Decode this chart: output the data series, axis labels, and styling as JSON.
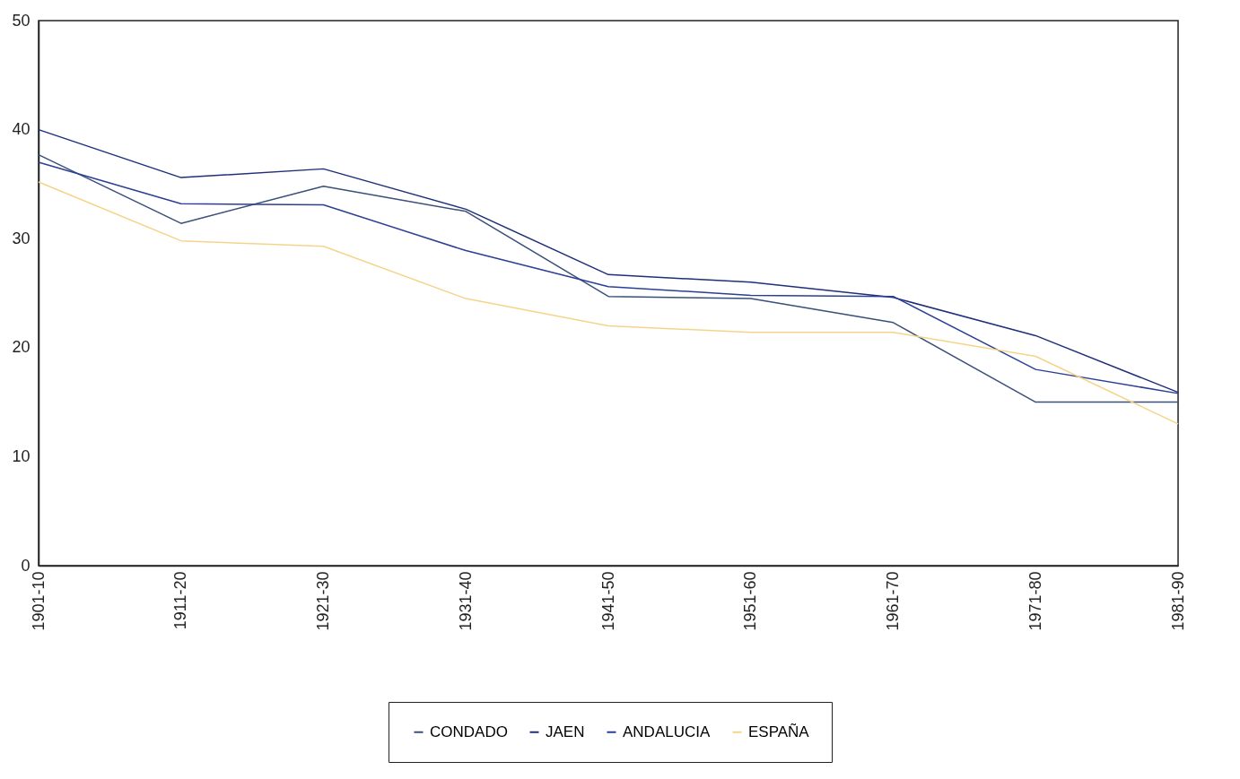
{
  "chart_data": {
    "type": "line",
    "categories": [
      "1901-10",
      "1911-20",
      "1921-30",
      "1931-40",
      "1941-50",
      "1951-60",
      "1961-70",
      "1971-80",
      "1981-90"
    ],
    "series": [
      {
        "name": "CONDADO",
        "color": "#3a4f7a",
        "values": [
          37.7,
          31.4,
          34.8,
          32.5,
          24.7,
          24.5,
          22.3,
          15,
          15
        ]
      },
      {
        "name": "JAEN",
        "color": "#1f2f7a",
        "values": [
          40,
          35.6,
          36.4,
          32.7,
          26.7,
          26,
          24.6,
          21.1,
          15.9
        ]
      },
      {
        "name": "ANDALUCIA",
        "color": "#2a3f95",
        "values": [
          37,
          33.2,
          33.1,
          28.9,
          25.6,
          24.8,
          24.7,
          18,
          15.8
        ]
      },
      {
        "name": "ESPAÑA",
        "color": "#f5d48a",
        "values": [
          35.2,
          29.8,
          29.3,
          24.5,
          22,
          21.4,
          21.4,
          19.2,
          13
        ]
      }
    ],
    "ylim": [
      0,
      50
    ],
    "yticks": [
      0,
      10,
      20,
      30,
      40,
      50
    ],
    "grid": false,
    "legend": "bottom",
    "marker": "none",
    "line_style": "solid"
  }
}
